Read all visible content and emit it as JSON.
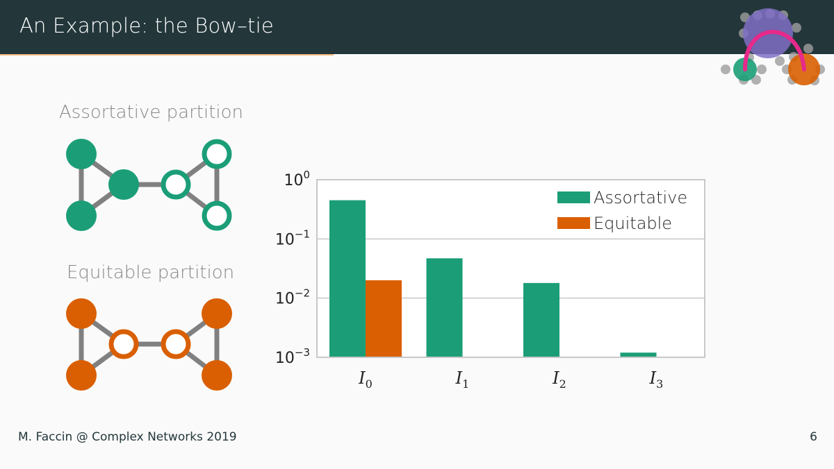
{
  "slide": {
    "title": "An Example: the Bow–tie",
    "footer": "M. Faccin @ Complex Networks 2019",
    "page_number": "6"
  },
  "graphs": {
    "assortative_label": "Assortative partition",
    "equitable_label": "Equitable partition"
  },
  "colors": {
    "header_bg": "#23373b",
    "accent": "#eb811b",
    "assortative": "#1b9e77",
    "equitable": "#d95f02",
    "edge": "#808080"
  },
  "chart_data": {
    "type": "bar",
    "categories": [
      "I_0",
      "I_1",
      "I_2",
      "I_3"
    ],
    "series": [
      {
        "name": "Assortative",
        "values": [
          0.45,
          0.047,
          0.018,
          0.0012
        ]
      },
      {
        "name": "Equitable",
        "values": [
          0.02,
          null,
          null,
          null
        ]
      }
    ],
    "y_scale": "log",
    "ylim": [
      0.001,
      1
    ],
    "y_ticks": [
      0.001,
      0.01,
      0.1,
      1
    ],
    "y_tick_exponents": [
      "−3",
      "−2",
      "−1",
      "0"
    ],
    "y_tick_base": "10",
    "grid": "horizontal",
    "legend_position": "top-right"
  }
}
